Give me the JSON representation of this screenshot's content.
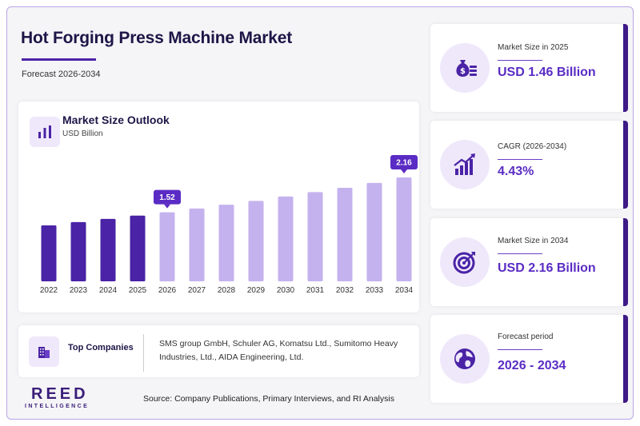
{
  "header": {
    "title": "Hot Forging Press Machine Market",
    "subtitle": "Forecast 2026-2034"
  },
  "chart_data": {
    "type": "bar",
    "title": "Market Size Outlook",
    "ylabel": "USD Billion",
    "categories": [
      "2022",
      "2023",
      "2024",
      "2025",
      "2026",
      "2027",
      "2028",
      "2029",
      "2030",
      "2031",
      "2032",
      "2033",
      "2034"
    ],
    "values": [
      1.28,
      1.34,
      1.4,
      1.46,
      1.52,
      1.59,
      1.66,
      1.73,
      1.81,
      1.89,
      1.97,
      2.06,
      2.16
    ],
    "ylim": [
      0,
      2.3
    ],
    "grid": false,
    "labeled": {
      "2026": "1.52",
      "2034": "2.16"
    },
    "historic_color": "#4a23a6",
    "forecast_color": "#c4b2ee",
    "label_color": "#5a2cc4"
  },
  "companies": {
    "label": "Top Companies",
    "text": "SMS group GmbH, Schuler AG, Komatsu Ltd., Sumitomo Heavy Industries, Ltd., AIDA Engineering, Ltd."
  },
  "brand": {
    "name": "REED",
    "tagline": "INTELLIGENCE"
  },
  "source": "Source: Company Publications, Primary Interviews, and RI Analysis",
  "stats": [
    {
      "label": "Market Size in 2025",
      "value": "USD 1.46 Billion",
      "icon": "money-bag-icon"
    },
    {
      "label": "CAGR (2026-2034)",
      "value": "4.43%",
      "icon": "growth-chart-icon"
    },
    {
      "label": "Market Size in 2034",
      "value": "USD 2.16 Billion",
      "icon": "target-icon"
    },
    {
      "label": "Forecast period",
      "value": "2026 - 2034",
      "icon": "globe-icon"
    }
  ]
}
